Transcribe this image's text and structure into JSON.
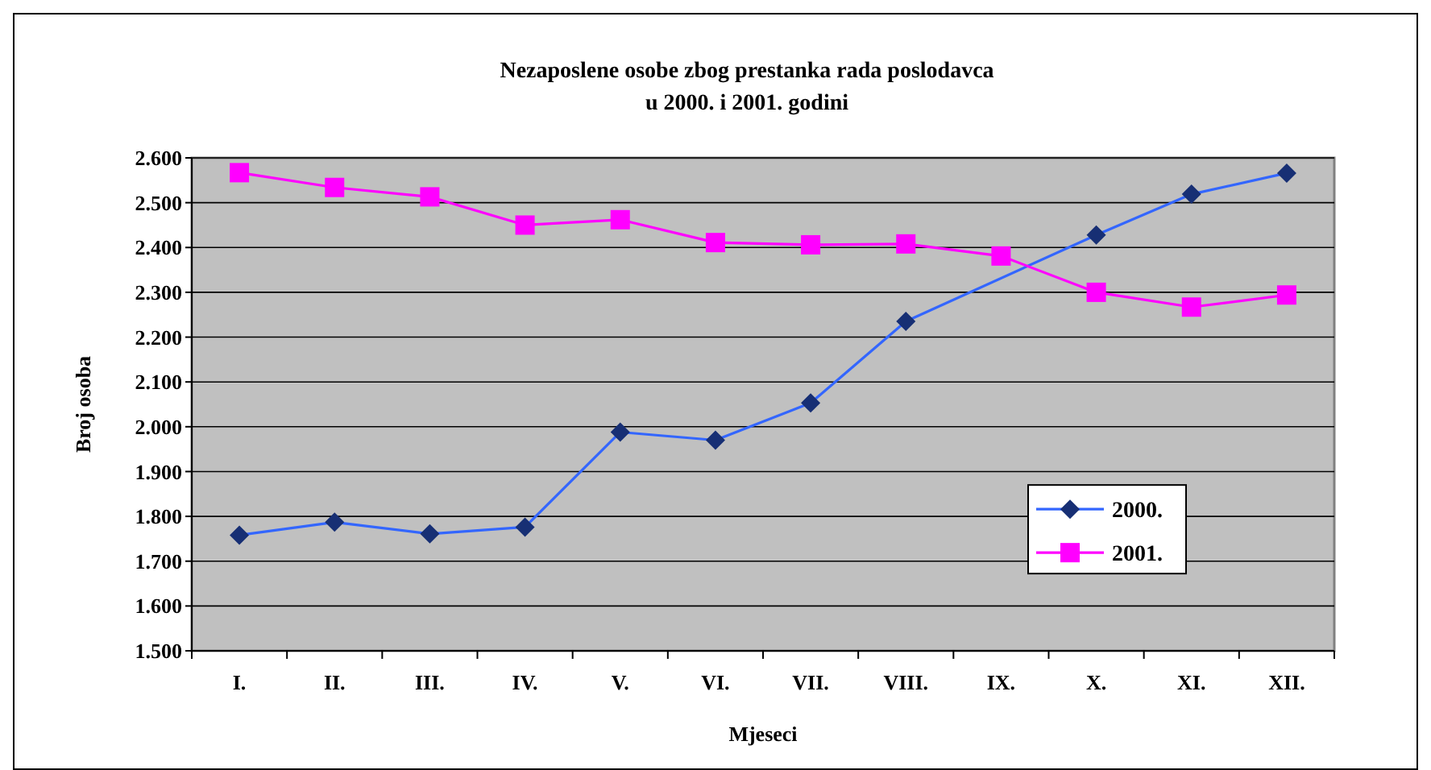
{
  "chart_data": {
    "type": "line",
    "title": "Nezaposlene osobe zbog prestanka rada poslodavca\nu 2000. i 2001. godini",
    "xlabel": "Mjeseci",
    "ylabel": "Broj osoba",
    "categories": [
      "I.",
      "II.",
      "III.",
      "IV.",
      "V.",
      "VI.",
      "VII.",
      "VIII.",
      "IX.",
      "X.",
      "XI.",
      "XII."
    ],
    "series": [
      {
        "name": "2000.",
        "color": "#3366ff",
        "marker": "diamond",
        "values": [
          1758,
          1787,
          1761,
          1776,
          1988,
          1970,
          2053,
          2235,
          null,
          2428,
          2519,
          2566
        ]
      },
      {
        "name": "2001.",
        "color": "#ff00ff",
        "marker": "square",
        "values": [
          2567,
          2534,
          2513,
          2450,
          2462,
          2411,
          2406,
          2408,
          2381,
          2300,
          2267,
          2294
        ]
      }
    ],
    "ylim": [
      1500,
      2600
    ],
    "yticks": [
      {
        "value": 1500,
        "label": "1.500"
      },
      {
        "value": 1600,
        "label": "1.600"
      },
      {
        "value": 1700,
        "label": "1.700"
      },
      {
        "value": 1800,
        "label": "1.800"
      },
      {
        "value": 1900,
        "label": "1.900"
      },
      {
        "value": 2000,
        "label": "2.000"
      },
      {
        "value": 2100,
        "label": "2.100"
      },
      {
        "value": 2200,
        "label": "2.200"
      },
      {
        "value": 2300,
        "label": "2.300"
      },
      {
        "value": 2400,
        "label": "2.400"
      },
      {
        "value": 2500,
        "label": "2.500"
      },
      {
        "value": 2600,
        "label": "2.600"
      }
    ],
    "grid": "y",
    "legend": "right",
    "line_style": "solid"
  }
}
